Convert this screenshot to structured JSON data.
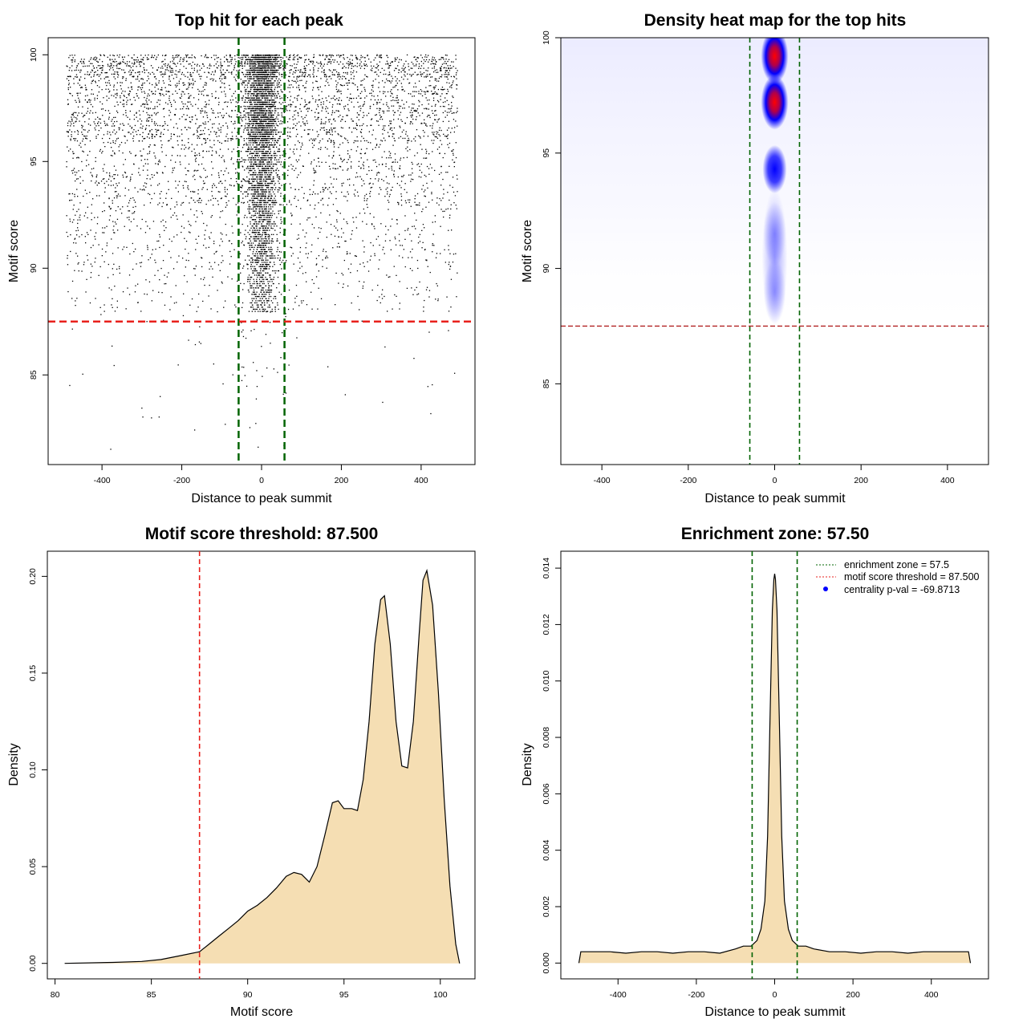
{
  "chart_data": [
    {
      "type": "scatter",
      "title": "Top hit for each peak",
      "xlabel": "Distance to peak summit",
      "ylabel": "Motif score",
      "xlim": [
        -535,
        535
      ],
      "ylim": [
        80.8,
        100.8
      ],
      "xticks": [
        -400,
        -200,
        0,
        200,
        400
      ],
      "yticks": [
        85,
        90,
        95,
        100
      ],
      "point_x_range": [
        -490,
        490
      ],
      "point_y_range": [
        81.5,
        100
      ],
      "threshold": 87.5,
      "enrichment_zone": 57.5,
      "threshold_color": "#e8201c",
      "zone_color": "#006400"
    },
    {
      "type": "heatmap",
      "title": "Density heat map for the top hits",
      "xlabel": "Distance to peak summit",
      "ylabel": "Motif score",
      "xlim": [
        -495,
        495
      ],
      "ylim": [
        81.5,
        100
      ],
      "xticks": [
        -400,
        -200,
        0,
        200,
        400
      ],
      "yticks": [
        85,
        90,
        95,
        100
      ],
      "hotspots": [
        {
          "x": 0,
          "y": 99.2,
          "level": "high"
        },
        {
          "x": 0,
          "y": 97.2,
          "level": "high"
        },
        {
          "x": 0,
          "y": 94.3,
          "level": "medium"
        },
        {
          "x": 0,
          "y": 91.5,
          "level": "low"
        },
        {
          "x": 0,
          "y": 89.0,
          "level": "low"
        }
      ],
      "threshold": 87.5,
      "enrichment_zone": 57.5,
      "threshold_color": "#b22222",
      "zone_color": "#006400"
    },
    {
      "type": "area",
      "title": "Motif score threshold: 87.500",
      "xlabel": "Motif score",
      "ylabel": "Density",
      "xlim": [
        79.6,
        101.8
      ],
      "ylim": [
        -0.008,
        0.213
      ],
      "xticks": [
        80,
        85,
        90,
        95,
        100
      ],
      "yticks": [
        0.0,
        0.05,
        0.1,
        0.15,
        0.2
      ],
      "ytick_labels": [
        "0.00",
        "0.05",
        "0.10",
        "0.15",
        "0.20"
      ],
      "x": [
        80.5,
        83,
        84.5,
        85.5,
        86.5,
        87.5,
        88,
        88.5,
        89,
        89.5,
        90,
        90.5,
        91,
        91.5,
        92,
        92.4,
        92.8,
        93.2,
        93.6,
        94,
        94.4,
        94.7,
        95,
        95.4,
        95.7,
        96,
        96.3,
        96.6,
        96.9,
        97.1,
        97.4,
        97.7,
        98,
        98.3,
        98.6,
        98.9,
        99.1,
        99.3,
        99.6,
        99.9,
        100.2,
        100.5,
        100.8,
        101
      ],
      "y": [
        0,
        0.0005,
        0.001,
        0.002,
        0.004,
        0.006,
        0.01,
        0.014,
        0.018,
        0.022,
        0.027,
        0.03,
        0.034,
        0.039,
        0.045,
        0.047,
        0.046,
        0.042,
        0.05,
        0.066,
        0.083,
        0.084,
        0.08,
        0.08,
        0.079,
        0.095,
        0.125,
        0.165,
        0.188,
        0.19,
        0.165,
        0.125,
        0.102,
        0.101,
        0.125,
        0.17,
        0.198,
        0.203,
        0.185,
        0.14,
        0.085,
        0.04,
        0.01,
        0
      ],
      "threshold": 87.5,
      "fill_color": "#f5deb3",
      "threshold_color": "#e8201c"
    },
    {
      "type": "area",
      "title": "Enrichment zone: 57.50",
      "xlabel": "Distance to peak summit",
      "ylabel": "Density",
      "xlim": [
        -546,
        546
      ],
      "ylim": [
        -0.00056,
        0.0146
      ],
      "xticks": [
        -400,
        -200,
        0,
        200,
        400
      ],
      "yticks": [
        0,
        0.002,
        0.004,
        0.006,
        0.008,
        0.01,
        0.012,
        0.014
      ],
      "ytick_labels": [
        "0.000",
        "0.002",
        "0.004",
        "0.006",
        "0.008",
        "0.010",
        "0.012",
        "0.014"
      ],
      "x": [
        -500,
        -495,
        -460,
        -420,
        -380,
        -340,
        -300,
        -260,
        -220,
        -180,
        -140,
        -100,
        -80,
        -60,
        -45,
        -35,
        -25,
        -18,
        -12,
        -6,
        -2,
        0,
        2,
        6,
        12,
        18,
        25,
        35,
        45,
        60,
        80,
        100,
        140,
        180,
        220,
        260,
        300,
        340,
        380,
        420,
        460,
        495,
        500
      ],
      "y": [
        0,
        0.0004,
        0.0004,
        0.0004,
        0.00035,
        0.0004,
        0.0004,
        0.00035,
        0.0004,
        0.0004,
        0.00035,
        0.0005,
        0.0006,
        0.0006,
        0.0008,
        0.0012,
        0.0022,
        0.0045,
        0.0085,
        0.0125,
        0.0136,
        0.0138,
        0.0136,
        0.0125,
        0.0085,
        0.0045,
        0.0022,
        0.0012,
        0.0008,
        0.0006,
        0.0006,
        0.0005,
        0.0004,
        0.0004,
        0.00035,
        0.0004,
        0.0004,
        0.00035,
        0.0004,
        0.0004,
        0.0004,
        0.0004,
        0
      ],
      "enrichment_zone": 57.5,
      "fill_color": "#f5deb3",
      "zone_color": "#006400",
      "legend_position": "top-right",
      "legend": [
        {
          "label": "enrichment zone = 57.5",
          "color": "#006400",
          "style": "dotted-line"
        },
        {
          "label": "motif score threshold = 87.500",
          "color": "#e8201c",
          "style": "dotted-line"
        },
        {
          "label": "centrality p-val = -69.8713",
          "color": "#0000ff",
          "style": "point"
        }
      ]
    }
  ]
}
